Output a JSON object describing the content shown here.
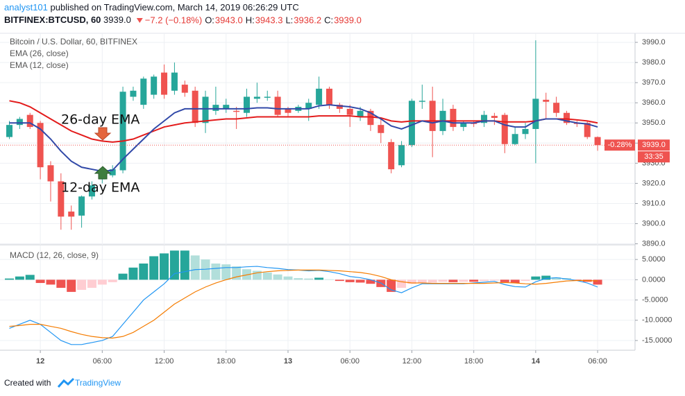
{
  "header": {
    "author": "analyst101",
    "published": "published on TradingView.com, March 14, 2019 06:26:29 UTC",
    "symbol": "BITFINEX:BTCUSD, 60",
    "last": "3939.0",
    "change": "−7.2 (−0.18%)",
    "ohlc": [
      {
        "label": "O:",
        "value": "3943.0"
      },
      {
        "label": "H:",
        "value": "3943.3"
      },
      {
        "label": "L:",
        "value": "3936.2"
      },
      {
        "label": "C:",
        "value": "3939.0"
      }
    ]
  },
  "footer": {
    "prefix": "Created with",
    "brand": "TradingView"
  },
  "chart_data": [
    {
      "type": "candlestick",
      "title": "Bitcoin / U.S. Dollar, 60, BITFINEX",
      "categories": [
        null,
        null,
        null,
        "12",
        null,
        null,
        null,
        null,
        null,
        "06:00",
        null,
        null,
        null,
        null,
        null,
        "12:00",
        null,
        null,
        null,
        null,
        null,
        "18:00",
        null,
        null,
        null,
        null,
        null,
        "13",
        null,
        null,
        null,
        null,
        null,
        "06:00",
        null,
        null,
        null,
        null,
        null,
        "12:00",
        null,
        null,
        null,
        null,
        null,
        "18:00",
        null,
        null,
        null,
        null,
        null,
        "14",
        null,
        null,
        null,
        null,
        null,
        "06:00"
      ],
      "open": [
        3943,
        3949,
        3954,
        3950,
        3929,
        3921,
        3906,
        3904,
        3913.5,
        3922,
        3924,
        3926.5,
        3963,
        3959,
        3964,
        3975,
        3966,
        3969,
        3966,
        3950,
        3956,
        3957,
        3956,
        3955,
        3962,
        3962.5,
        3963,
        3957,
        3956,
        3957,
        3959,
        3967,
        3959,
        3957,
        3953,
        3956,
        3949,
        3940.5,
        3929,
        3939,
        3960.5,
        3961,
        3946,
        3957,
        3948,
        3950,
        3950,
        3953.5,
        3954,
        3939.5,
        3944.5,
        3947,
        3961.5,
        3960,
        3955,
        3950,
        3950,
        3943
      ],
      "high": [
        3951,
        3953,
        3955,
        3951,
        3931,
        3925,
        3909,
        3914,
        3921,
        3928,
        3929,
        3968,
        3968,
        3973,
        3974,
        3979,
        3980,
        3971,
        3968,
        3966,
        3968,
        3962,
        3958,
        3967,
        3970,
        3966,
        3966,
        3958,
        3959,
        3962,
        3973,
        3968,
        3960,
        3959,
        3958,
        3957,
        3952,
        3942,
        3941,
        3962,
        3969,
        3968,
        3962,
        3959,
        3951,
        3951,
        3956,
        3955,
        3955,
        3948,
        3950,
        3991,
        3965,
        3963,
        3956,
        3951,
        3951,
        3943.3
      ],
      "low": [
        3942,
        3947,
        3947,
        3922,
        3911,
        3897,
        3897,
        3898,
        3912,
        3920,
        3923,
        3925,
        3961,
        3957,
        3962,
        3962,
        3964,
        3963,
        3948,
        3945,
        3954,
        3955,
        3947,
        3953,
        3960,
        3961,
        3953,
        3953,
        3955,
        3951,
        3957,
        3957,
        3955,
        3948,
        3951,
        3946,
        3940,
        3925,
        3928,
        3938,
        3957,
        3933,
        3944,
        3946,
        3946,
        3948,
        3948,
        3949,
        3935,
        3939,
        3942,
        3930,
        3952,
        3953,
        3949,
        3948,
        3942,
        3936.2
      ],
      "close": [
        3949,
        3952,
        3948,
        3928,
        3921,
        3903.5,
        3903.5,
        3913.5,
        3919,
        3927,
        3927,
        3965.5,
        3966,
        3972,
        3973,
        3964,
        3975,
        3965,
        3950,
        3963,
        3959,
        3959,
        3955.5,
        3963,
        3963,
        3963,
        3954,
        3955,
        3958,
        3960,
        3967,
        3959,
        3957,
        3954,
        3956,
        3949,
        3945,
        3927,
        3939,
        3961,
        3961,
        3946,
        3956,
        3948,
        3950,
        3949.5,
        3954,
        3952.5,
        3939.5,
        3944.5,
        3947,
        3962,
        3960.5,
        3955,
        3950,
        3949.5,
        3943,
        3939
      ],
      "up_color": "#26a69a",
      "down_color": "#ef5350",
      "series": [
        {
          "name": "EMA (26, close)",
          "color": "#e31b1b",
          "values": [
            3961,
            3960,
            3958,
            3955,
            3952,
            3949,
            3946,
            3944,
            3942,
            3941,
            3940.5,
            3941,
            3942,
            3944,
            3946,
            3948,
            3949,
            3950,
            3950.5,
            3951,
            3951.5,
            3952,
            3952,
            3952.5,
            3953,
            3953,
            3953,
            3953,
            3953,
            3953,
            3953.5,
            3953.5,
            3953.5,
            3953.5,
            3953,
            3953,
            3952.5,
            3951,
            3950.5,
            3951,
            3951,
            3951,
            3951,
            3951,
            3951,
            3951,
            3951,
            3951,
            3950.5,
            3950.5,
            3950.5,
            3951,
            3952,
            3952,
            3952,
            3951.5,
            3951,
            3950
          ]
        },
        {
          "name": "EMA (12, close)",
          "color": "#3149a8",
          "values": [
            3950,
            3950,
            3950,
            3947,
            3942,
            3936,
            3931,
            3928,
            3927,
            3926,
            3926.5,
            3932,
            3937,
            3942,
            3947,
            3951,
            3955,
            3957,
            3957,
            3957,
            3957,
            3957,
            3957,
            3957,
            3957.5,
            3957.5,
            3957,
            3957,
            3957,
            3957,
            3958.5,
            3959,
            3958.5,
            3958,
            3957,
            3955,
            3952,
            3948.5,
            3947,
            3949,
            3951,
            3950,
            3951,
            3950,
            3950,
            3950,
            3951,
            3951,
            3949,
            3948,
            3948,
            3951,
            3952,
            3952,
            3951,
            3950,
            3949.5,
            3948
          ]
        }
      ],
      "annotations": [
        "26-day EMA",
        "12-day EMA"
      ],
      "last_price": {
        "value": 3939.0,
        "label": "3939.0"
      },
      "change_label": "-0.28%",
      "countdown": "33:35",
      "ylim": [
        3889.5,
        3994.5
      ],
      "yticks": [
        {
          "value": 3990,
          "label": "3990.0"
        },
        {
          "value": 3980,
          "label": "3980.0"
        },
        {
          "value": 3970,
          "label": "3970.0"
        },
        {
          "value": 3960,
          "label": "3960.0"
        },
        {
          "value": 3950,
          "label": "3950.0"
        },
        {
          "value": 3940,
          "label": "3940.0"
        },
        {
          "value": 3930,
          "label": "3930.0"
        },
        {
          "value": 3920,
          "label": "3920.0"
        },
        {
          "value": 3910,
          "label": "3910.0"
        },
        {
          "value": 3900,
          "label": "3900.0"
        },
        {
          "value": 3890,
          "label": "3890.0"
        }
      ],
      "grid": true
    },
    {
      "type": "macd",
      "title": "MACD (12, 26, close, 9)",
      "histogram": {
        "values": [
          0.3,
          0.8,
          1.2,
          -0.8,
          -1.2,
          -2,
          -3,
          -2.5,
          -2,
          -1.2,
          -0.6,
          1.5,
          3,
          4,
          5.8,
          6.5,
          7.2,
          7.2,
          6,
          5,
          4,
          3.8,
          3.3,
          2.6,
          2.2,
          1.8,
          1.3,
          0.8,
          0.4,
          0.3,
          0.5,
          0.1,
          -0.3,
          -0.6,
          -0.7,
          -1,
          -1.8,
          -3,
          -2,
          -1,
          -0.8,
          -0.7,
          -0.5,
          -0.6,
          -0.5,
          -0.5,
          -0.3,
          -0.2,
          -0.6,
          -0.8,
          -0.3,
          0.8,
          1,
          0.6,
          0.4,
          -0.2,
          -0.5,
          -1.2
        ],
        "colors": [
          "#26a69a",
          "#b2dfdb",
          "#ef5350",
          "#ffcdd2"
        ]
      },
      "series": [
        {
          "name": "MACD",
          "color": "#2196f3",
          "values": [
            -12,
            -11,
            -10,
            -11,
            -13,
            -15,
            -16,
            -16,
            -15.5,
            -15,
            -14,
            -11,
            -8,
            -5,
            -3,
            -1,
            1.5,
            2,
            2.5,
            2.6,
            2.8,
            3,
            3,
            3.2,
            3.3,
            3,
            2.8,
            2.5,
            2.4,
            2.2,
            2.3,
            2,
            1.5,
            0.8,
            0.5,
            0,
            -0.8,
            -2.5,
            -3.2,
            -2,
            -1,
            -1,
            -1,
            -1,
            -1,
            -0.8,
            -0.6,
            -0.4,
            -1.2,
            -1.7,
            -1.8,
            -0.5,
            0.3,
            0.5,
            0.2,
            -0.2,
            -0.8,
            -1.8
          ]
        },
        {
          "name": "Signal",
          "color": "#f57c00",
          "values": [
            -11.5,
            -11.3,
            -11,
            -11,
            -11.5,
            -12,
            -12.8,
            -13.5,
            -14,
            -14.3,
            -14.4,
            -14,
            -13,
            -11.5,
            -10,
            -8,
            -6,
            -4.5,
            -3,
            -1.8,
            -0.8,
            0,
            0.7,
            1.2,
            1.7,
            2,
            2.2,
            2.3,
            2.4,
            2.4,
            2.4,
            2.3,
            2.2,
            2,
            1.8,
            1.4,
            0.8,
            0,
            -0.5,
            -0.8,
            -0.8,
            -0.9,
            -0.9,
            -0.9,
            -0.9,
            -0.9,
            -0.9,
            -0.8,
            -0.7,
            -0.8,
            -1,
            -1.1,
            -0.9,
            -0.6,
            -0.3,
            -0.2,
            -0.2,
            -0.3
          ]
        }
      ],
      "ylim": [
        -17.4,
        8.45
      ],
      "yticks": [
        {
          "value": 5,
          "label": "5.0000"
        },
        {
          "value": 0,
          "label": "0.0000"
        },
        {
          "value": -5,
          "label": "-5.0000"
        },
        {
          "value": -10,
          "label": "-10.0000"
        },
        {
          "value": -15,
          "label": "-15.0000"
        }
      ],
      "grid": true
    }
  ]
}
